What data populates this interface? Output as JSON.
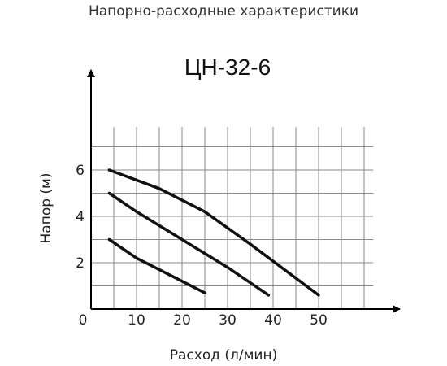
{
  "header": {
    "title": "Напорно-расходные характеристики"
  },
  "chart_data": {
    "type": "line",
    "title": "ЦН-32-6",
    "xlabel": "Расход (л/мин)",
    "ylabel": "Напор (м)",
    "xlim": [
      0,
      55
    ],
    "ylim": [
      0,
      10
    ],
    "x_ticks": [
      0,
      10,
      20,
      30,
      40,
      50
    ],
    "y_ticks": [
      2,
      4,
      6
    ],
    "grid": true,
    "legend": "none",
    "series": [
      {
        "values": [
          [
            4,
            3.0
          ],
          [
            10,
            2.2
          ],
          [
            18,
            1.4
          ],
          [
            25,
            0.7
          ]
        ]
      },
      {
        "values": [
          [
            4,
            5.0
          ],
          [
            10,
            4.2
          ],
          [
            20,
            3.0
          ],
          [
            30,
            1.8
          ],
          [
            39,
            0.6
          ]
        ]
      },
      {
        "values": [
          [
            4,
            6.0
          ],
          [
            15,
            5.2
          ],
          [
            25,
            4.2
          ],
          [
            35,
            2.8
          ],
          [
            50,
            0.6
          ]
        ]
      }
    ]
  }
}
